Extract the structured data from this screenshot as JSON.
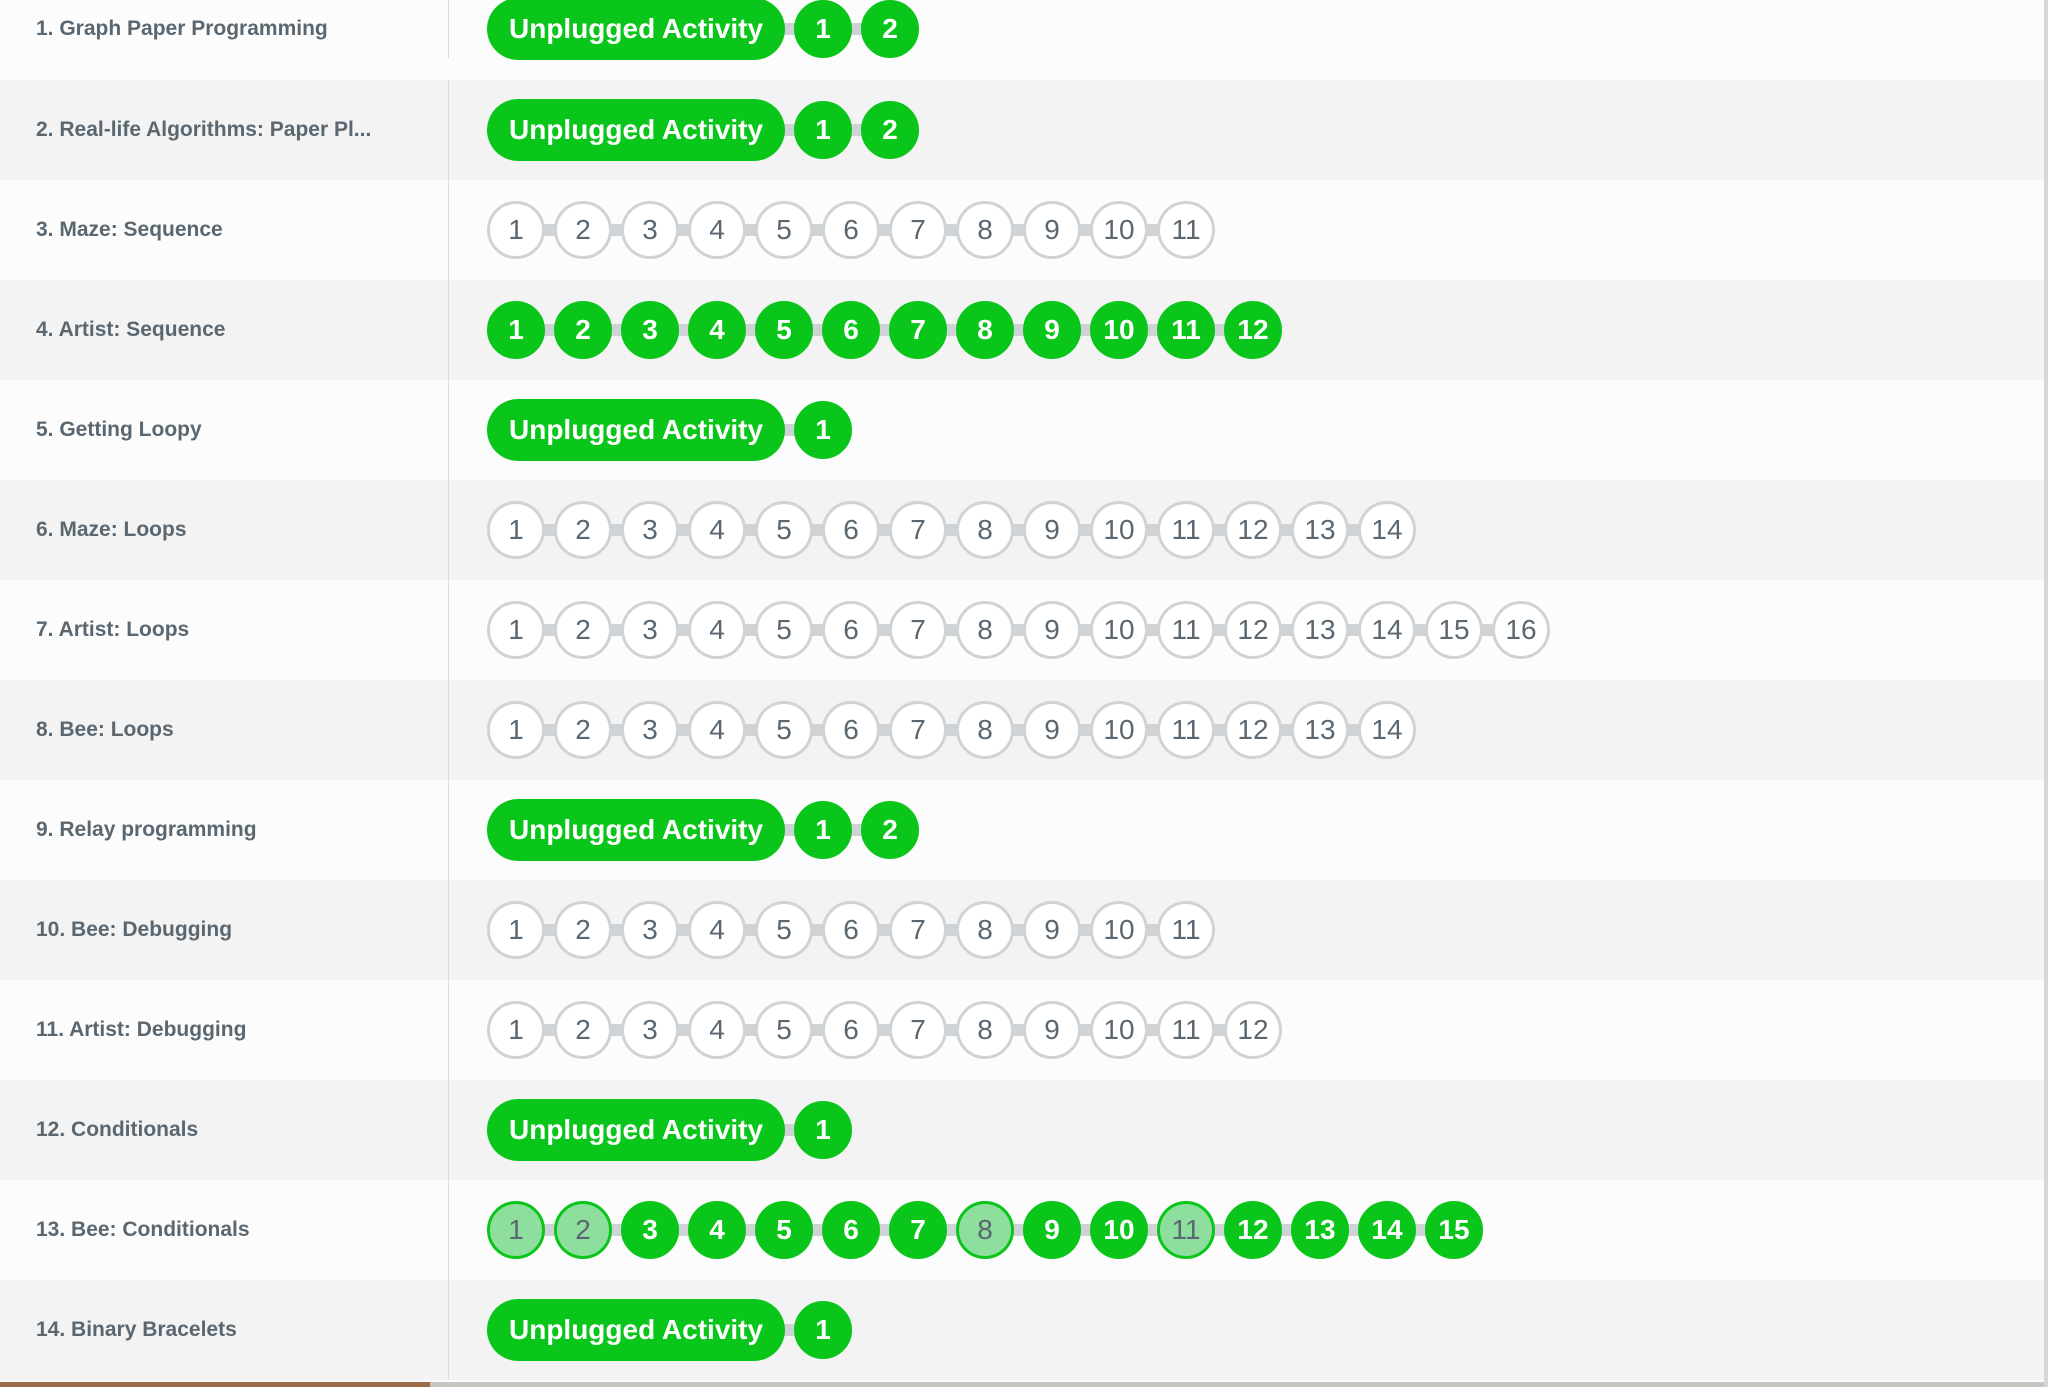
{
  "colors": {
    "perfect": "#0ac51a",
    "attempted": "#8ede9e",
    "not_started": "#ffffff",
    "text": "#5b6770"
  },
  "stages": [
    {
      "name": "1. Graph Paper Programming",
      "unplugged": "Unplugged Activity",
      "levels": [
        {
          "n": "1",
          "s": "perfect"
        },
        {
          "n": "2",
          "s": "perfect"
        }
      ]
    },
    {
      "name": "2. Real-life Algorithms: Paper Pl...",
      "unplugged": "Unplugged Activity",
      "levels": [
        {
          "n": "1",
          "s": "perfect"
        },
        {
          "n": "2",
          "s": "perfect"
        }
      ]
    },
    {
      "name": "3. Maze: Sequence",
      "levels": [
        {
          "n": "1",
          "s": "none"
        },
        {
          "n": "2",
          "s": "none"
        },
        {
          "n": "3",
          "s": "none"
        },
        {
          "n": "4",
          "s": "none"
        },
        {
          "n": "5",
          "s": "none"
        },
        {
          "n": "6",
          "s": "none"
        },
        {
          "n": "7",
          "s": "none"
        },
        {
          "n": "8",
          "s": "none"
        },
        {
          "n": "9",
          "s": "none"
        },
        {
          "n": "10",
          "s": "none"
        },
        {
          "n": "11",
          "s": "none"
        }
      ]
    },
    {
      "name": "4. Artist: Sequence",
      "levels": [
        {
          "n": "1",
          "s": "perfect"
        },
        {
          "n": "2",
          "s": "perfect"
        },
        {
          "n": "3",
          "s": "perfect"
        },
        {
          "n": "4",
          "s": "perfect"
        },
        {
          "n": "5",
          "s": "perfect"
        },
        {
          "n": "6",
          "s": "perfect"
        },
        {
          "n": "7",
          "s": "perfect"
        },
        {
          "n": "8",
          "s": "perfect"
        },
        {
          "n": "9",
          "s": "perfect"
        },
        {
          "n": "10",
          "s": "perfect"
        },
        {
          "n": "11",
          "s": "perfect"
        },
        {
          "n": "12",
          "s": "perfect"
        }
      ]
    },
    {
      "name": "5. Getting Loopy",
      "unplugged": "Unplugged Activity",
      "levels": [
        {
          "n": "1",
          "s": "perfect"
        }
      ]
    },
    {
      "name": "6. Maze: Loops",
      "levels": [
        {
          "n": "1",
          "s": "none"
        },
        {
          "n": "2",
          "s": "none"
        },
        {
          "n": "3",
          "s": "none"
        },
        {
          "n": "4",
          "s": "none"
        },
        {
          "n": "5",
          "s": "none"
        },
        {
          "n": "6",
          "s": "none"
        },
        {
          "n": "7",
          "s": "none"
        },
        {
          "n": "8",
          "s": "none"
        },
        {
          "n": "9",
          "s": "none"
        },
        {
          "n": "10",
          "s": "none"
        },
        {
          "n": "11",
          "s": "none"
        },
        {
          "n": "12",
          "s": "none"
        },
        {
          "n": "13",
          "s": "none"
        },
        {
          "n": "14",
          "s": "none"
        }
      ]
    },
    {
      "name": "7. Artist: Loops",
      "levels": [
        {
          "n": "1",
          "s": "none"
        },
        {
          "n": "2",
          "s": "none"
        },
        {
          "n": "3",
          "s": "none"
        },
        {
          "n": "4",
          "s": "none"
        },
        {
          "n": "5",
          "s": "none"
        },
        {
          "n": "6",
          "s": "none"
        },
        {
          "n": "7",
          "s": "none"
        },
        {
          "n": "8",
          "s": "none"
        },
        {
          "n": "9",
          "s": "none"
        },
        {
          "n": "10",
          "s": "none"
        },
        {
          "n": "11",
          "s": "none"
        },
        {
          "n": "12",
          "s": "none"
        },
        {
          "n": "13",
          "s": "none"
        },
        {
          "n": "14",
          "s": "none"
        },
        {
          "n": "15",
          "s": "none"
        },
        {
          "n": "16",
          "s": "none"
        }
      ]
    },
    {
      "name": "8. Bee: Loops",
      "levels": [
        {
          "n": "1",
          "s": "none"
        },
        {
          "n": "2",
          "s": "none"
        },
        {
          "n": "3",
          "s": "none"
        },
        {
          "n": "4",
          "s": "none"
        },
        {
          "n": "5",
          "s": "none"
        },
        {
          "n": "6",
          "s": "none"
        },
        {
          "n": "7",
          "s": "none"
        },
        {
          "n": "8",
          "s": "none"
        },
        {
          "n": "9",
          "s": "none"
        },
        {
          "n": "10",
          "s": "none"
        },
        {
          "n": "11",
          "s": "none"
        },
        {
          "n": "12",
          "s": "none"
        },
        {
          "n": "13",
          "s": "none"
        },
        {
          "n": "14",
          "s": "none"
        }
      ]
    },
    {
      "name": "9. Relay programming",
      "unplugged": "Unplugged Activity",
      "levels": [
        {
          "n": "1",
          "s": "perfect"
        },
        {
          "n": "2",
          "s": "perfect"
        }
      ]
    },
    {
      "name": "10. Bee: Debugging",
      "levels": [
        {
          "n": "1",
          "s": "none"
        },
        {
          "n": "2",
          "s": "none"
        },
        {
          "n": "3",
          "s": "none"
        },
        {
          "n": "4",
          "s": "none"
        },
        {
          "n": "5",
          "s": "none"
        },
        {
          "n": "6",
          "s": "none"
        },
        {
          "n": "7",
          "s": "none"
        },
        {
          "n": "8",
          "s": "none"
        },
        {
          "n": "9",
          "s": "none"
        },
        {
          "n": "10",
          "s": "none"
        },
        {
          "n": "11",
          "s": "none"
        }
      ]
    },
    {
      "name": "11. Artist: Debugging",
      "levels": [
        {
          "n": "1",
          "s": "none"
        },
        {
          "n": "2",
          "s": "none"
        },
        {
          "n": "3",
          "s": "none"
        },
        {
          "n": "4",
          "s": "none"
        },
        {
          "n": "5",
          "s": "none"
        },
        {
          "n": "6",
          "s": "none"
        },
        {
          "n": "7",
          "s": "none"
        },
        {
          "n": "8",
          "s": "none"
        },
        {
          "n": "9",
          "s": "none"
        },
        {
          "n": "10",
          "s": "none"
        },
        {
          "n": "11",
          "s": "none"
        },
        {
          "n": "12",
          "s": "none"
        }
      ]
    },
    {
      "name": "12. Conditionals",
      "unplugged": "Unplugged Activity",
      "levels": [
        {
          "n": "1",
          "s": "perfect"
        }
      ]
    },
    {
      "name": "13. Bee: Conditionals",
      "levels": [
        {
          "n": "1",
          "s": "attempted"
        },
        {
          "n": "2",
          "s": "attempted"
        },
        {
          "n": "3",
          "s": "perfect"
        },
        {
          "n": "4",
          "s": "perfect"
        },
        {
          "n": "5",
          "s": "perfect"
        },
        {
          "n": "6",
          "s": "perfect"
        },
        {
          "n": "7",
          "s": "perfect"
        },
        {
          "n": "8",
          "s": "attempted"
        },
        {
          "n": "9",
          "s": "perfect"
        },
        {
          "n": "10",
          "s": "perfect"
        },
        {
          "n": "11",
          "s": "attempted"
        },
        {
          "n": "12",
          "s": "perfect"
        },
        {
          "n": "13",
          "s": "perfect"
        },
        {
          "n": "14",
          "s": "perfect"
        },
        {
          "n": "15",
          "s": "perfect"
        }
      ]
    },
    {
      "name": "14. Binary Bracelets",
      "unplugged": "Unplugged Activity",
      "levels": [
        {
          "n": "1",
          "s": "perfect"
        }
      ]
    }
  ]
}
